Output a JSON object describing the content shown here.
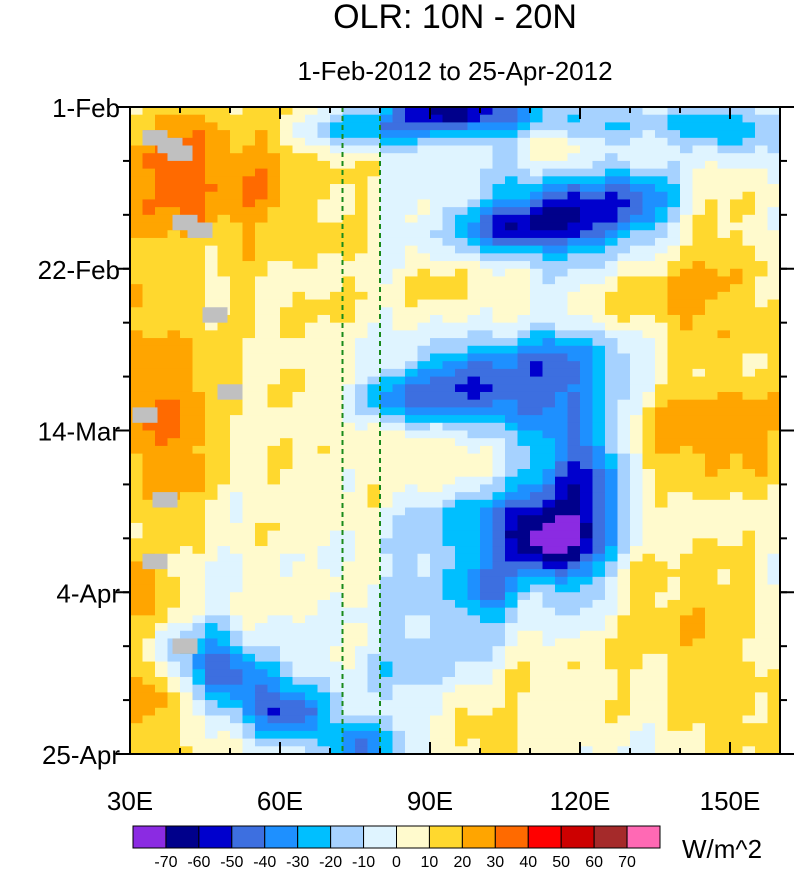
{
  "chart_data": {
    "type": "heatmap",
    "title": "OLR: 10N - 20N",
    "subtitle": "1-Feb-2012 to 25-Apr-2012",
    "x_axis": {
      "range": [
        30,
        160
      ],
      "ticks": [
        {
          "value": 30,
          "label": "30E"
        },
        {
          "value": 60,
          "label": "60E"
        },
        {
          "value": 90,
          "label": "90E"
        },
        {
          "value": 120,
          "label": "120E"
        },
        {
          "value": 150,
          "label": "150E"
        }
      ],
      "minor_ticks": [
        40,
        50,
        70,
        80,
        100,
        110,
        130,
        140,
        160
      ]
    },
    "y_axis": {
      "range_days": [
        0,
        84
      ],
      "ticks": [
        {
          "value": 0,
          "label": "1-Feb"
        },
        {
          "value": 21,
          "label": "22-Feb"
        },
        {
          "value": 42,
          "label": "14-Mar"
        },
        {
          "value": 63,
          "label": "4-Apr"
        },
        {
          "value": 84,
          "label": "25-Apr"
        }
      ],
      "minor_tick_step_days": 7
    },
    "reference_lines_lon": [
      72.5,
      80
    ],
    "colorbar": {
      "units": "W/m^2",
      "levels": [
        "-70",
        "-60",
        "-50",
        "-40",
        "-30",
        "-20",
        "-10",
        "0",
        "10",
        "20",
        "30",
        "40",
        "50",
        "60",
        "70"
      ],
      "colors": [
        "#8b2be2",
        "#00008b",
        "#0000cd",
        "#3d6fe0",
        "#1e90ff",
        "#00bfff",
        "#a6d2ff",
        "#dff4ff",
        "#fffacd",
        "#ffd82e",
        "#ffa500",
        "#ff6a00",
        "#ff0000",
        "#cd0000",
        "#a52a2a",
        "#ff69b4"
      ]
    },
    "anomaly_features": [
      {
        "lon": 45,
        "day": 9,
        "sigma_lon": 14,
        "sigma_day": 6,
        "amp": 25
      },
      {
        "lon": 35,
        "day": 40,
        "sigma_lon": 8,
        "sigma_day": 8,
        "amp": 22
      },
      {
        "lon": 34,
        "day": 63,
        "sigma_lon": 5,
        "sigma_day": 4,
        "amp": 20
      },
      {
        "lon": 62,
        "day": 25,
        "sigma_lon": 14,
        "sigma_day": 20,
        "amp": 5
      },
      {
        "lon": 78,
        "day": 3,
        "sigma_lon": 10,
        "sigma_day": 2,
        "amp": -30
      },
      {
        "lon": 95,
        "day": 0.5,
        "sigma_lon": 8,
        "sigma_day": 1.5,
        "amp": -45
      },
      {
        "lon": 108,
        "day": 2,
        "sigma_lon": 18,
        "sigma_day": 2,
        "amp": -25
      },
      {
        "lon": 150,
        "day": 3,
        "sigma_lon": 8,
        "sigma_day": 2,
        "amp": -30
      },
      {
        "lon": 120,
        "day": 14,
        "sigma_lon": 12,
        "sigma_day": 4,
        "amp": -60
      },
      {
        "lon": 133,
        "day": 12,
        "sigma_lon": 5,
        "sigma_day": 3,
        "amp": -25
      },
      {
        "lon": 105,
        "day": 16,
        "sigma_lon": 8,
        "sigma_day": 2,
        "amp": -30
      },
      {
        "lon": 115,
        "day": 5,
        "sigma_lon": 5,
        "sigma_day": 2,
        "amp": 22
      },
      {
        "lon": 140,
        "day": 16,
        "sigma_lon": 14,
        "sigma_day": 6,
        "amp": 18
      },
      {
        "lon": 145,
        "day": 27,
        "sigma_lon": 16,
        "sigma_day": 5,
        "amp": 20
      },
      {
        "lon": 95,
        "day": 24,
        "sigma_lon": 8,
        "sigma_day": 3,
        "amp": 15
      },
      {
        "lon": 98,
        "day": 38,
        "sigma_lon": 12,
        "sigma_day": 3,
        "amp": -45
      },
      {
        "lon": 112,
        "day": 33,
        "sigma_lon": 16,
        "sigma_day": 3,
        "amp": -30
      },
      {
        "lon": 83,
        "day": 38,
        "sigma_lon": 5,
        "sigma_day": 2,
        "amp": -20
      },
      {
        "lon": 120,
        "day": 50,
        "sigma_lon": 6,
        "sigma_day": 10,
        "amp": -55
      },
      {
        "lon": 112,
        "day": 56,
        "sigma_lon": 6,
        "sigma_day": 3,
        "amp": -50
      },
      {
        "lon": 100,
        "day": 53,
        "sigma_lon": 9,
        "sigma_day": 4,
        "amp": -25
      },
      {
        "lon": 102,
        "day": 63,
        "sigma_lon": 5,
        "sigma_day": 3,
        "amp": -30
      },
      {
        "lon": 92,
        "day": 46,
        "sigma_lon": 7,
        "sigma_day": 5,
        "amp": 18
      },
      {
        "lon": 138,
        "day": 42,
        "sigma_lon": 12,
        "sigma_day": 5,
        "amp": 12
      },
      {
        "lon": 150,
        "day": 42,
        "sigma_lon": 12,
        "sigma_day": 6,
        "amp": 22
      },
      {
        "lon": 140,
        "day": 66,
        "sigma_lon": 16,
        "sigma_day": 8,
        "amp": 20
      },
      {
        "lon": 112,
        "day": 74,
        "sigma_lon": 10,
        "sigma_day": 7,
        "amp": 14
      },
      {
        "lon": 50,
        "day": 74,
        "sigma_lon": 7,
        "sigma_day": 2.5,
        "amp": -50
      },
      {
        "lon": 62,
        "day": 79,
        "sigma_lon": 7,
        "sigma_day": 2.5,
        "amp": -50
      },
      {
        "lon": 42,
        "day": 69,
        "sigma_lon": 7,
        "sigma_day": 2.5,
        "amp": -30
      },
      {
        "lon": 76,
        "day": 83,
        "sigma_lon": 5,
        "sigma_day": 2,
        "amp": -40
      },
      {
        "lon": 88,
        "day": 73,
        "sigma_lon": 14,
        "sigma_day": 4,
        "amp": -10
      },
      {
        "lon": 95,
        "day": 63,
        "sigma_lon": 18,
        "sigma_day": 8,
        "amp": -10
      },
      {
        "lon": 40,
        "day": 60,
        "sigma_lon": 6,
        "sigma_day": 3,
        "amp": -12
      },
      {
        "lon": 34,
        "day": 76,
        "sigma_lon": 5,
        "sigma_day": 4,
        "amp": 15
      },
      {
        "lon": 98,
        "day": 80,
        "sigma_lon": 5,
        "sigma_day": 3,
        "amp": 18
      },
      {
        "lon": 152,
        "day": 80,
        "sigma_lon": 10,
        "sigma_day": 5,
        "amp": 15
      }
    ],
    "missing_cells": [
      {
        "lon": 35,
        "day": 4
      },
      {
        "lon": 38,
        "day": 5
      },
      {
        "lon": 40,
        "day": 6
      },
      {
        "lon": 41,
        "day": 15
      },
      {
        "lon": 44,
        "day": 16
      },
      {
        "lon": 47,
        "day": 27
      },
      {
        "lon": 50,
        "day": 37
      },
      {
        "lon": 33,
        "day": 40
      },
      {
        "lon": 37,
        "day": 51
      },
      {
        "lon": 35,
        "day": 59
      },
      {
        "lon": 41,
        "day": 70
      }
    ]
  }
}
